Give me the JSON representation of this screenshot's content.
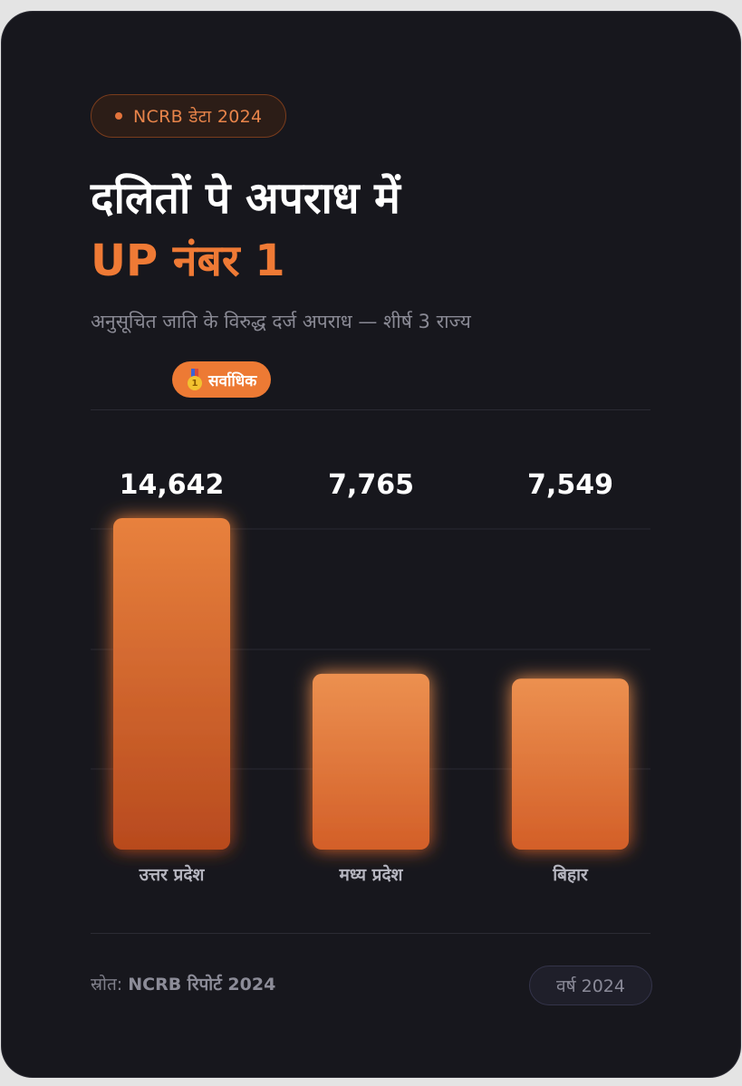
{
  "header": {
    "tag": "NCRB डेटा 2024",
    "title_line1": "दलितों पे अपराध में",
    "title_line2": "UP नंबर 1",
    "subtitle": "अनुसूचित जाति के विरुद्ध दर्ज अपराध — शीर्ष 3 राज्य",
    "badge_label": "सर्वाधिक",
    "badge_icon": "medal-icon"
  },
  "colors": {
    "accent": "#ef7a35",
    "background": "#17171d",
    "bar_top": "#ec9050",
    "bar_bottom": "#d35f28",
    "bar_top_highlight": "#e8813d",
    "bar_bottom_highlight": "#b84a1e"
  },
  "chart_data": {
    "type": "bar",
    "categories": [
      "उत्तर प्रदेश",
      "मध्य प्रदेश",
      "बिहार"
    ],
    "values": [
      14642,
      7765,
      7549
    ],
    "value_labels": [
      "14,642",
      "7,765",
      "7,549"
    ],
    "highlight_index": 0,
    "grid": true,
    "title": "",
    "xlabel": "",
    "ylabel": ""
  },
  "footer": {
    "source_prefix": "स्रोत:",
    "source_name": "NCRB रिपोर्ट 2024",
    "year": "वर्ष 2024"
  }
}
